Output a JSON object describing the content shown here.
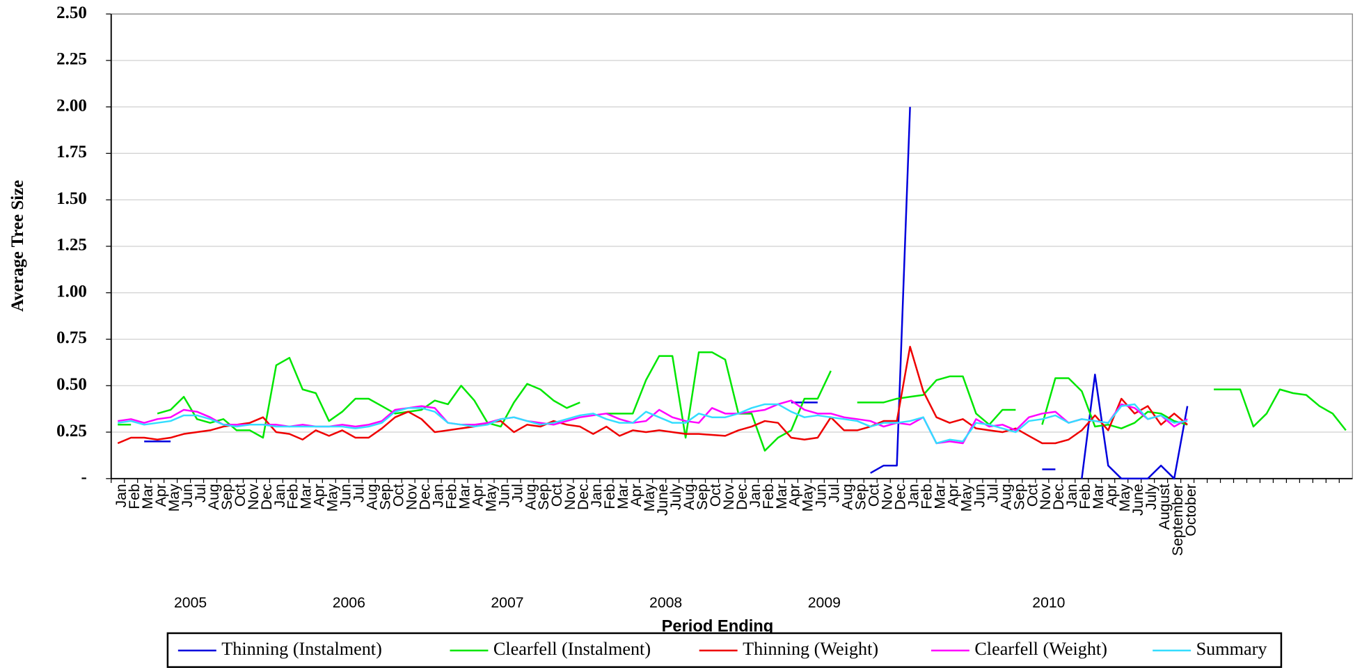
{
  "chart_data": {
    "type": "line",
    "x_title": "Period Ending",
    "y_title": "Average Tree Size",
    "category_groups": [
      {
        "label": "2005",
        "categories": [
          "Jan",
          "Feb",
          "Mar",
          "Apr",
          "May",
          "Jun",
          "Jul",
          "Aug",
          "Sep",
          "Oct",
          "Nov",
          "Dec"
        ]
      },
      {
        "label": "2006",
        "categories": [
          "Jan",
          "Feb",
          "Mar",
          "Apr",
          "May",
          "Jun",
          "Jul",
          "Aug",
          "Sep",
          "Oct",
          "Nov",
          "Dec"
        ]
      },
      {
        "label": "2007",
        "categories": [
          "Jan",
          "Feb",
          "Mar",
          "Apr",
          "May",
          "Jun",
          "Jul",
          "Aug",
          "Sep",
          "Oct",
          "Nov",
          "Dec"
        ]
      },
      {
        "label": "2008",
        "categories": [
          "Jan",
          "Feb",
          "Mar",
          "Apr",
          "May",
          "June",
          "July",
          "Aug",
          "Sep",
          "Oct",
          "Nov",
          "Dec"
        ]
      },
      {
        "label": "2009",
        "categories": [
          "Jan",
          "Feb",
          "Mar",
          "Apr",
          "May",
          "Jun",
          "Jul",
          "Aug",
          "Sep",
          "Oct",
          "Nov",
          "Dec"
        ]
      },
      {
        "label": "2010",
        "categories": [
          "Jan",
          "Feb",
          "Mar",
          "Apr",
          "May",
          "Jun",
          "Jul",
          "Aug",
          "Sep",
          "Oct",
          "Nov",
          "Dec",
          "Jan",
          "Feb",
          "Mar",
          "Apr",
          "May",
          "June",
          "July",
          "August",
          "September",
          "October"
        ]
      },
      {
        "label": null,
        "categories": [
          null,
          null,
          null,
          null,
          null,
          null,
          null,
          null,
          null,
          null,
          null,
          null
        ]
      }
    ],
    "series": [
      {
        "name": "Thinning (Instalment)",
        "color": "#0000dd",
        "values": [
          null,
          null,
          0.2,
          0.2,
          0.2,
          null,
          null,
          null,
          null,
          null,
          null,
          null,
          null,
          null,
          null,
          null,
          null,
          null,
          null,
          null,
          null,
          null,
          null,
          null,
          null,
          null,
          null,
          null,
          null,
          null,
          null,
          null,
          null,
          null,
          null,
          null,
          null,
          null,
          null,
          null,
          null,
          null,
          null,
          null,
          null,
          null,
          null,
          0.35,
          0.35,
          null,
          null,
          0.41,
          0.41,
          0.41,
          null,
          null,
          null,
          0.03,
          0.07,
          0.07,
          2.0,
          null,
          null,
          null,
          null,
          null,
          null,
          null,
          null,
          null,
          0.05,
          0.05,
          null,
          0,
          0.56,
          0.07,
          0,
          0,
          0,
          0.07,
          0,
          0.39,
          null,
          null,
          null,
          null,
          null,
          null,
          null,
          null,
          null,
          null,
          null,
          null
        ]
      },
      {
        "name": "Clearfell (Instalment)",
        "color": "#00e600",
        "values": [
          0.29,
          0.29,
          null,
          0.35,
          0.37,
          0.44,
          0.32,
          0.3,
          0.32,
          0.26,
          0.26,
          0.22,
          0.61,
          0.65,
          0.48,
          0.46,
          0.31,
          0.36,
          0.43,
          0.43,
          0.39,
          0.35,
          0.36,
          0.37,
          0.42,
          0.4,
          0.5,
          0.42,
          0.3,
          0.28,
          0.41,
          0.51,
          0.48,
          0.42,
          0.38,
          0.41,
          null,
          0.35,
          0.35,
          0.35,
          0.53,
          0.66,
          0.66,
          0.22,
          0.68,
          0.68,
          0.64,
          0.35,
          0.35,
          0.15,
          0.22,
          0.26,
          0.43,
          0.43,
          0.58,
          null,
          0.41,
          0.41,
          0.41,
          0.43,
          0.44,
          0.45,
          0.53,
          0.55,
          0.55,
          0.35,
          0.29,
          0.37,
          0.37,
          null,
          0.29,
          0.54,
          0.54,
          0.47,
          0.28,
          0.29,
          0.27,
          0.3,
          0.36,
          0.35,
          0.31,
          0.29,
          null,
          0.48,
          0.48,
          0.48,
          0.28,
          0.35,
          0.48,
          0.46,
          0.45,
          0.39,
          0.35,
          0.26
        ]
      },
      {
        "name": "Thinning (Weight)",
        "color": "#ee0000",
        "values": [
          0.19,
          0.22,
          0.22,
          0.21,
          0.22,
          0.24,
          0.25,
          0.26,
          0.28,
          0.29,
          0.3,
          0.33,
          0.25,
          0.24,
          0.21,
          0.26,
          0.23,
          0.26,
          0.22,
          0.22,
          0.27,
          0.33,
          0.36,
          0.32,
          0.25,
          0.26,
          0.27,
          0.28,
          0.3,
          0.31,
          0.25,
          0.29,
          0.28,
          0.31,
          0.29,
          0.28,
          0.24,
          0.28,
          0.23,
          0.26,
          0.25,
          0.26,
          0.25,
          0.24,
          0.24,
          0.235,
          0.23,
          0.26,
          0.28,
          0.31,
          0.3,
          0.22,
          0.21,
          0.22,
          0.33,
          0.26,
          0.26,
          0.28,
          0.31,
          0.31,
          0.71,
          0.47,
          0.33,
          0.3,
          0.32,
          0.27,
          0.26,
          0.25,
          0.27,
          0.23,
          0.19,
          0.19,
          0.21,
          0.26,
          0.34,
          0.26,
          0.43,
          0.35,
          0.39,
          0.29,
          0.35,
          0.29,
          null,
          null,
          null,
          null,
          null,
          null,
          null,
          null,
          null,
          null,
          null,
          null
        ]
      },
      {
        "name": "Clearfell (Weight)",
        "color": "#ff00ff",
        "values": [
          0.31,
          0.32,
          0.3,
          0.32,
          0.33,
          0.37,
          0.36,
          0.33,
          0.29,
          0.29,
          0.29,
          0.29,
          0.29,
          0.28,
          0.29,
          0.28,
          0.28,
          0.29,
          0.28,
          0.29,
          0.31,
          0.37,
          0.38,
          0.39,
          0.38,
          0.3,
          0.29,
          0.29,
          0.3,
          0.32,
          0.33,
          0.31,
          0.3,
          0.29,
          0.31,
          0.33,
          0.34,
          0.35,
          0.32,
          0.3,
          0.31,
          0.37,
          0.33,
          0.31,
          0.3,
          0.38,
          0.35,
          0.35,
          0.36,
          0.37,
          0.4,
          0.42,
          0.37,
          0.35,
          0.35,
          0.33,
          0.32,
          0.31,
          0.28,
          0.3,
          0.29,
          0.33,
          0.19,
          0.2,
          0.19,
          0.32,
          0.28,
          0.29,
          0.26,
          0.33,
          0.35,
          0.36,
          0.3,
          0.32,
          0.31,
          0.3,
          0.4,
          0.38,
          0.32,
          0.34,
          0.28,
          0.32,
          null,
          null,
          null,
          null,
          null,
          null,
          null,
          null,
          null,
          null,
          null,
          null
        ]
      },
      {
        "name": "Summary",
        "color": "#33ddff",
        "values": [
          0.3,
          0.31,
          0.29,
          0.3,
          0.31,
          0.34,
          0.34,
          0.32,
          0.29,
          0.28,
          0.29,
          0.29,
          0.28,
          0.28,
          0.28,
          0.28,
          0.28,
          0.28,
          0.27,
          0.28,
          0.3,
          0.36,
          0.38,
          0.38,
          0.36,
          0.3,
          0.29,
          0.28,
          0.29,
          0.32,
          0.33,
          0.31,
          0.29,
          0.3,
          0.32,
          0.34,
          0.35,
          0.32,
          0.3,
          0.3,
          0.36,
          0.33,
          0.3,
          0.3,
          0.35,
          0.33,
          0.33,
          0.35,
          0.38,
          0.4,
          0.4,
          0.36,
          0.33,
          0.34,
          0.33,
          0.32,
          0.31,
          0.28,
          0.3,
          0.3,
          0.31,
          0.33,
          0.19,
          0.21,
          0.2,
          0.3,
          0.29,
          0.27,
          0.25,
          0.31,
          0.32,
          0.34,
          0.3,
          0.32,
          0.31,
          0.3,
          0.39,
          0.4,
          0.32,
          0.34,
          0.3,
          0.31,
          null,
          null,
          null,
          null,
          null,
          null,
          null,
          null,
          null,
          null,
          null,
          null
        ]
      }
    ],
    "ylim": [
      0,
      2.5
    ],
    "yticks": [
      {
        "value": 0,
        "label": "-"
      },
      0.25,
      {
        "value": 0.5,
        "label": "0.50"
      },
      0.75,
      {
        "value": 1,
        "label": "1.00"
      },
      1.25,
      {
        "value": 1.5,
        "label": "1.50"
      },
      1.75,
      {
        "value": 2,
        "label": "2.00"
      },
      2.25,
      {
        "value": 2.5,
        "label": "2.50"
      }
    ],
    "grid": true,
    "legend": "bottom"
  }
}
